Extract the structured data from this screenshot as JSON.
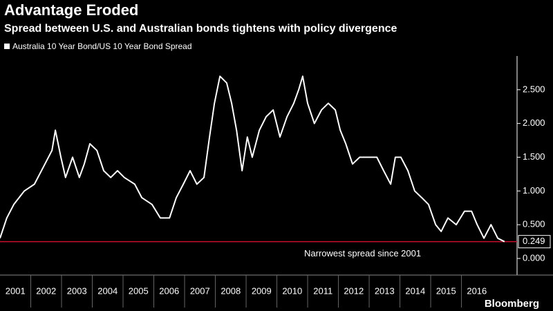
{
  "chart_data": {
    "type": "line",
    "title": "Advantage Eroded",
    "subtitle": "Spread between U.S. and Australian bonds tightens with policy divergence",
    "source": "Bloomberg",
    "x": [
      2001.0,
      2001.22,
      2001.45,
      2001.79,
      2002.12,
      2002.46,
      2002.69,
      2002.8,
      2002.98,
      2003.13,
      2003.36,
      2003.58,
      2003.74,
      2003.92,
      2004.15,
      2004.37,
      2004.6,
      2004.82,
      2005.04,
      2005.38,
      2005.61,
      2005.94,
      2006.21,
      2006.51,
      2006.73,
      2006.96,
      2007.18,
      2007.4,
      2007.63,
      2007.81,
      2007.97,
      2008.15,
      2008.37,
      2008.53,
      2008.69,
      2008.87,
      2009.04,
      2009.2,
      2009.43,
      2009.65,
      2009.88,
      2010.1,
      2010.33,
      2010.55,
      2010.71,
      2010.84,
      2011.0,
      2011.22,
      2011.45,
      2011.67,
      2011.9,
      2012.06,
      2012.24,
      2012.46,
      2012.69,
      2012.91,
      2013.25,
      2013.47,
      2013.7,
      2013.85,
      2014.03,
      2014.26,
      2014.48,
      2014.71,
      2014.93,
      2015.16,
      2015.34,
      2015.56,
      2015.83,
      2016.1,
      2016.33,
      2016.51,
      2016.73,
      2016.96,
      2017.18,
      2017.4
    ],
    "series": [
      {
        "name": "Australia 10 Year Bond/US 10 Year Bond Spread",
        "color": "#ffffff",
        "values": [
          0.3,
          0.6,
          0.8,
          1.0,
          1.1,
          1.4,
          1.6,
          1.9,
          1.5,
          1.2,
          1.5,
          1.2,
          1.4,
          1.7,
          1.6,
          1.3,
          1.2,
          1.3,
          1.2,
          1.1,
          0.9,
          0.8,
          0.6,
          0.6,
          0.9,
          1.1,
          1.3,
          1.1,
          1.2,
          1.8,
          2.3,
          2.7,
          2.6,
          2.3,
          1.9,
          1.3,
          1.8,
          1.5,
          1.9,
          2.1,
          2.2,
          1.8,
          2.1,
          2.3,
          2.5,
          2.7,
          2.3,
          2.0,
          2.2,
          2.3,
          2.2,
          1.9,
          1.7,
          1.4,
          1.5,
          1.5,
          1.5,
          1.3,
          1.1,
          1.5,
          1.5,
          1.3,
          1.0,
          0.9,
          0.8,
          0.5,
          0.4,
          0.6,
          0.5,
          0.7,
          0.7,
          0.5,
          0.3,
          0.5,
          0.3,
          0.249
        ]
      }
    ],
    "last_value": 0.249,
    "reference_line": {
      "value": 0.249,
      "label": "Narrowest spread since 2001",
      "color": "#c8102e"
    },
    "xlim": [
      2001,
      2017.74
    ],
    "xticks": [
      2001,
      2002,
      2003,
      2004,
      2005,
      2006,
      2007,
      2008,
      2009,
      2010,
      2011,
      2012,
      2013,
      2014,
      2015,
      2016
    ],
    "ylim": [
      -0.2,
      3.0
    ],
    "yticks": [
      {
        "value": 0,
        "label": "0.000"
      },
      {
        "value": 0.5,
        "label": "0.500"
      },
      {
        "value": 1,
        "label": "1.000"
      },
      {
        "value": 1.5,
        "label": "1.500"
      },
      {
        "value": 2,
        "label": "2.000"
      },
      {
        "value": 2.5,
        "label": "2.500"
      }
    ]
  }
}
